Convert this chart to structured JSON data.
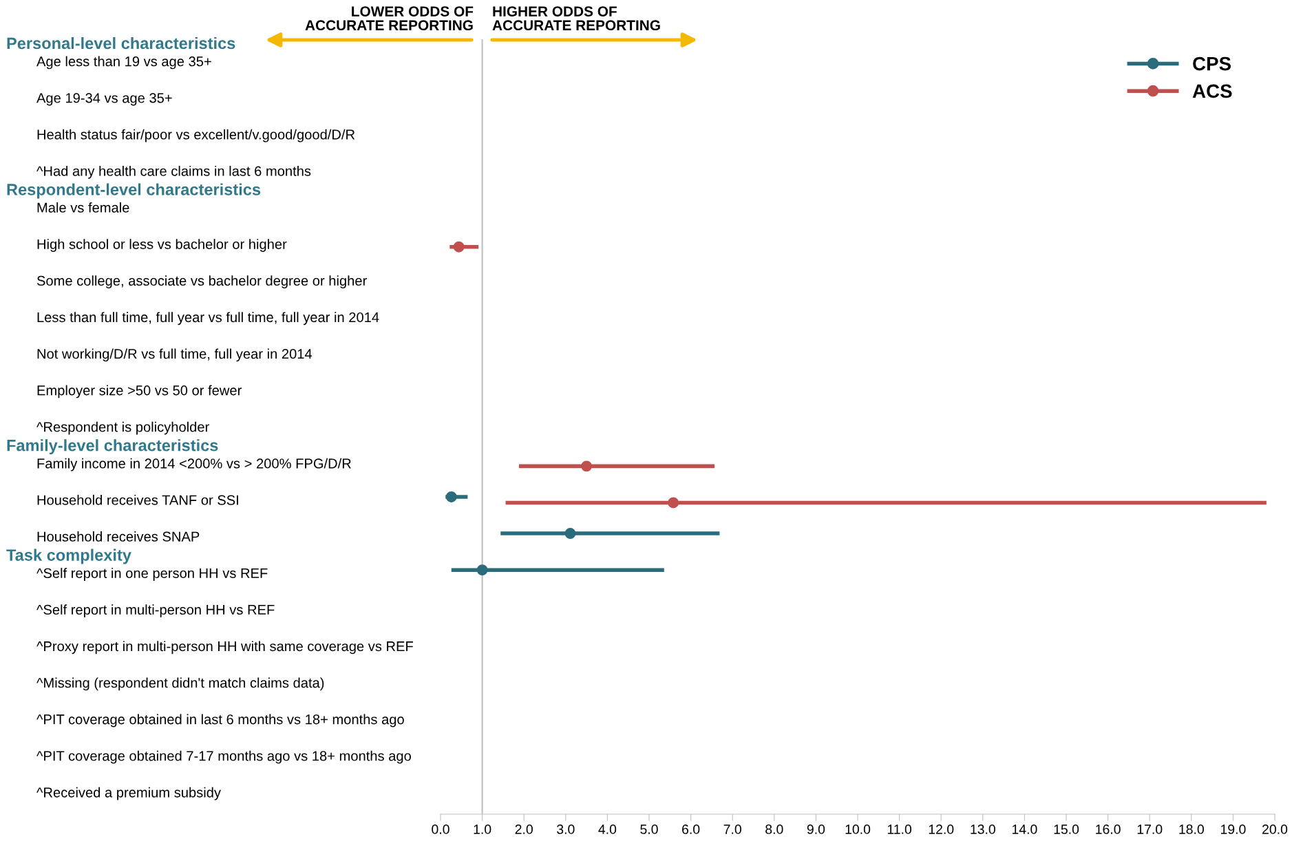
{
  "chart_data": {
    "type": "scatter",
    "orientation": "horizontal",
    "marker": "circle",
    "legend": "top right",
    "categories": [
      "Age less than 19 vs age 35+",
      "Age 19-34 vs age 35+",
      "Health status fair/poor vs excellent/v.good/good/D/R",
      "^Had any health care claims in last 6 months",
      "Male vs female",
      "High school or less vs bachelor or higher",
      "Some college, associate vs bachelor degree or higher",
      "Less than full time, full year vs full time, full year in 2014",
      "Not working/D/R vs full time, full year in 2014",
      "Employer size >50 vs 50 or fewer",
      "^Respondent is policyholder",
      "Family income in 2014 <200% vs > 200% FPG/D/R",
      "Household receives TANF or SSI",
      "Household receives SNAP",
      "^Self report in one person HH vs REF",
      "^Self report in multi-person HH vs REF",
      "^Proxy report in multi-person HH with same coverage vs REF",
      "^Missing (respondent didn't match claims data)",
      "^PIT coverage obtained in last 6 months vs 18+ months ago",
      "^PIT coverage obtained 7-17 months ago vs 18+ months ago",
      "^Received a premium subsidy"
    ],
    "series": [
      {
        "name": "CPS",
        "color": "#2a6b7c",
        "values": [
          null,
          null,
          null,
          null,
          null,
          null,
          null,
          null,
          null,
          null,
          null,
          null,
          0.26,
          3.11,
          1.0,
          null,
          null,
          null,
          null,
          null,
          null
        ],
        "errors": [
          null,
          null,
          null,
          null,
          null,
          null,
          null,
          null,
          null,
          null,
          null,
          null,
          [
            0.12,
            0.65
          ],
          [
            1.44,
            6.69
          ],
          [
            0.26,
            5.36
          ],
          null,
          null,
          null,
          null,
          null,
          null
        ]
      },
      {
        "name": "ACS",
        "color": "#c0504d",
        "values": [
          null,
          null,
          null,
          null,
          null,
          0.44,
          null,
          null,
          null,
          null,
          null,
          3.5,
          5.58,
          null,
          null,
          null,
          null,
          null,
          null,
          null,
          null
        ],
        "errors": [
          null,
          null,
          null,
          null,
          null,
          [
            0.22,
            0.91
          ],
          null,
          null,
          null,
          null,
          null,
          [
            1.88,
            6.57
          ],
          [
            1.56,
            19.8
          ],
          null,
          null,
          null,
          null,
          null,
          null,
          null,
          null
        ]
      }
    ],
    "xlim": [
      0,
      20
    ],
    "xticks": [
      {
        "value": 0,
        "label": "0.0"
      },
      {
        "value": 1,
        "label": "1.0"
      },
      {
        "value": 2,
        "label": "2.0"
      },
      {
        "value": 3,
        "label": "3.0"
      },
      {
        "value": 4,
        "label": "4.0"
      },
      {
        "value": 5,
        "label": "5.0"
      },
      {
        "value": 6,
        "label": "6.0"
      },
      {
        "value": 7,
        "label": "7.0"
      },
      {
        "value": 8,
        "label": "8.0"
      },
      {
        "value": 9,
        "label": "9.0"
      },
      {
        "value": 10,
        "label": "10.0"
      },
      {
        "value": 11,
        "label": "11.0"
      },
      {
        "value": 12,
        "label": "12.0"
      },
      {
        "value": 13,
        "label": "13.0"
      },
      {
        "value": 14,
        "label": "14.0"
      },
      {
        "value": 15,
        "label": "15.0"
      },
      {
        "value": 16,
        "label": "16.0"
      },
      {
        "value": 17,
        "label": "17.0"
      },
      {
        "value": 18,
        "label": "18.0"
      },
      {
        "value": 19,
        "label": "19.0"
      },
      {
        "value": 20,
        "label": "20.0"
      }
    ],
    "ref_lines": [
      {
        "axis": "x",
        "value": 1,
        "color": "#bfbfbf"
      }
    ],
    "annotations": [
      "Personal-level characteristics",
      "Respondent-level characteristics",
      "Family-level characteristics",
      "Task complexity",
      "LOWER ODDS OF\nACCURATE REPORTING",
      "HIGHER ODDS OF\nACCURATE REPORTING"
    ]
  }
}
